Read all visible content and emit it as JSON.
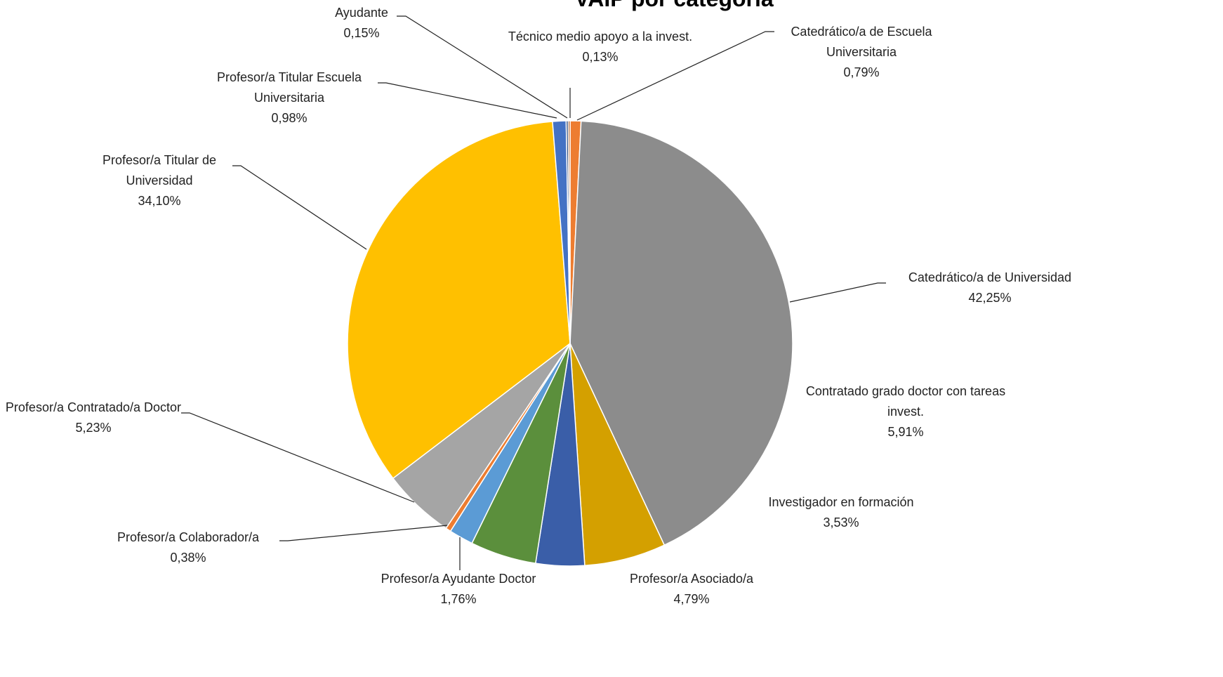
{
  "chart_data": {
    "type": "pie",
    "title": "VAIP por categoría",
    "categories": [
      "Catedrático/a de Escuela Universitaria",
      "Catedrático/a de Universidad",
      "Contratado grado doctor con tareas invest.",
      "Investigador en formación",
      "Profesor/a Asociado/a",
      "Profesor/a Ayudante Doctor",
      "Profesor/a Colaborador/a",
      "Profesor/a Contratado/a Doctor",
      "Profesor/a Titular de Universidad",
      "Profesor/a Titular Escuela Universitaria",
      "Ayudante",
      "Técnico medio apoyo a la invest."
    ],
    "values": [
      0.79,
      42.25,
      5.91,
      3.53,
      4.79,
      1.76,
      0.38,
      5.23,
      34.1,
      0.98,
      0.15,
      0.13
    ],
    "value_labels": [
      "0,79%",
      "42,25%",
      "5,91%",
      "3,53%",
      "4,79%",
      "1,76%",
      "0,38%",
      "5,23%",
      "34,10%",
      "0,98%",
      "0,15%",
      "0,13%"
    ],
    "colors": [
      "#ed7d31",
      "#8c8c8c",
      "#d4a000",
      "#3a5ea8",
      "#5b8f3c",
      "#5b9bd5",
      "#ed7d31",
      "#a5a5a5",
      "#ffc000",
      "#4472c4",
      "#264478",
      "#9e480e"
    ]
  }
}
